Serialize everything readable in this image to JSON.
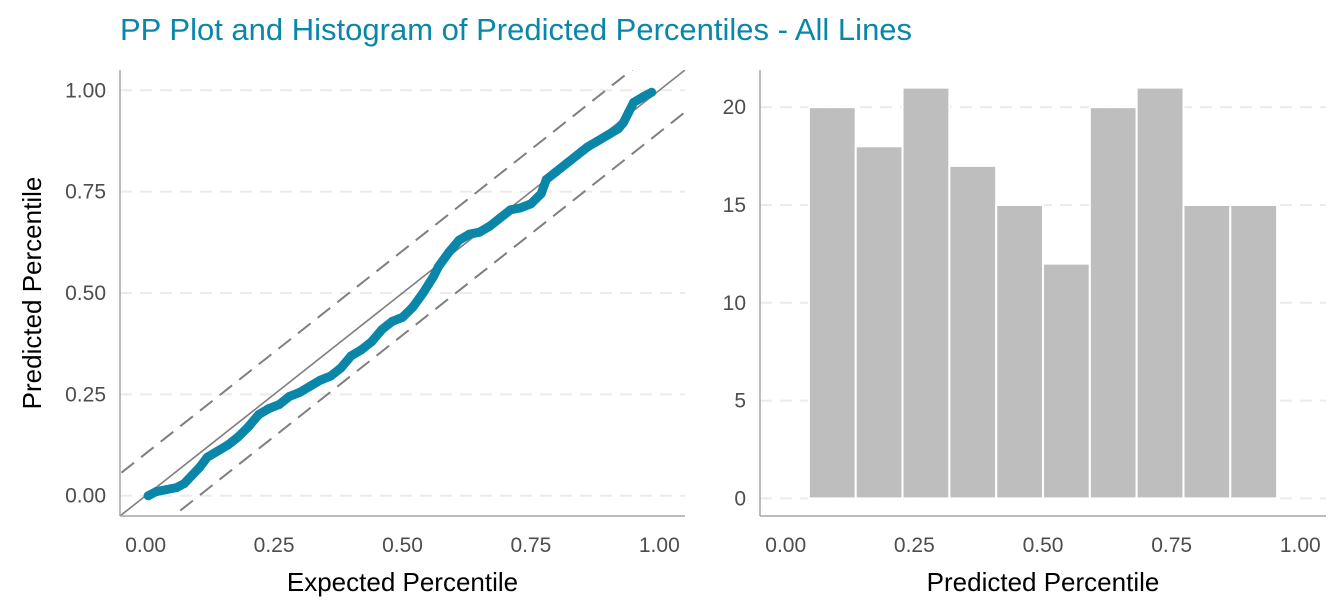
{
  "title": "PP Plot and Histogram of Predicted Percentiles - All Lines",
  "colors": {
    "title": "#0A86A8",
    "points": "#0A86A8",
    "bars": "#BEBEBE",
    "reference_lines": "#7F7F7F",
    "grid": "#EBEBEB",
    "axis": "#A6A6A6"
  },
  "chart_data": [
    {
      "type": "scatter",
      "xlabel": "Expected Percentile",
      "ylabel": "Predicted Percentile",
      "xlim": [
        -0.05,
        1.05
      ],
      "ylim": [
        -0.05,
        1.05
      ],
      "xticks": [
        "0.00",
        "0.25",
        "0.50",
        "0.75",
        "1.00"
      ],
      "yticks": [
        "0.00",
        "0.25",
        "0.50",
        "0.75",
        "1.00"
      ],
      "xtick_values": [
        0,
        0.25,
        0.5,
        0.75,
        1
      ],
      "ytick_values": [
        0,
        0.25,
        0.5,
        0.75,
        1
      ],
      "grid": "horizontal dashed",
      "reference_line": {
        "slope": 1,
        "intercept": 0,
        "style": "solid"
      },
      "confidence_band": {
        "offset": 0.104,
        "style": "dashed"
      },
      "points": [
        [
          0.005,
          0.0
        ],
        [
          0.02,
          0.01
        ],
        [
          0.04,
          0.015
        ],
        [
          0.06,
          0.02
        ],
        [
          0.075,
          0.03
        ],
        [
          0.09,
          0.05
        ],
        [
          0.105,
          0.07
        ],
        [
          0.12,
          0.095
        ],
        [
          0.14,
          0.11
        ],
        [
          0.16,
          0.125
        ],
        [
          0.18,
          0.145
        ],
        [
          0.2,
          0.17
        ],
        [
          0.22,
          0.2
        ],
        [
          0.24,
          0.215
        ],
        [
          0.26,
          0.225
        ],
        [
          0.28,
          0.245
        ],
        [
          0.3,
          0.255
        ],
        [
          0.32,
          0.27
        ],
        [
          0.34,
          0.285
        ],
        [
          0.36,
          0.295
        ],
        [
          0.38,
          0.315
        ],
        [
          0.4,
          0.345
        ],
        [
          0.42,
          0.36
        ],
        [
          0.44,
          0.38
        ],
        [
          0.46,
          0.41
        ],
        [
          0.48,
          0.43
        ],
        [
          0.5,
          0.44
        ],
        [
          0.52,
          0.465
        ],
        [
          0.54,
          0.5
        ],
        [
          0.56,
          0.54
        ],
        [
          0.57,
          0.565
        ],
        [
          0.59,
          0.6
        ],
        [
          0.61,
          0.63
        ],
        [
          0.63,
          0.645
        ],
        [
          0.65,
          0.65
        ],
        [
          0.67,
          0.665
        ],
        [
          0.69,
          0.685
        ],
        [
          0.71,
          0.705
        ],
        [
          0.73,
          0.71
        ],
        [
          0.75,
          0.72
        ],
        [
          0.77,
          0.745
        ],
        [
          0.78,
          0.78
        ],
        [
          0.8,
          0.8
        ],
        [
          0.82,
          0.82
        ],
        [
          0.84,
          0.84
        ],
        [
          0.86,
          0.86
        ],
        [
          0.88,
          0.875
        ],
        [
          0.9,
          0.89
        ],
        [
          0.92,
          0.905
        ],
        [
          0.93,
          0.92
        ],
        [
          0.94,
          0.945
        ],
        [
          0.95,
          0.97
        ],
        [
          0.97,
          0.985
        ],
        [
          0.985,
          0.995
        ]
      ]
    },
    {
      "type": "bar",
      "xlabel": "Predicted Percentile",
      "ylabel": "",
      "xlim": [
        -0.05,
        1.05
      ],
      "ylim": [
        -0.9,
        21.9
      ],
      "xticks": [
        "0.00",
        "0.25",
        "0.50",
        "0.75",
        "1.00"
      ],
      "yticks": [
        "0",
        "5",
        "10",
        "15",
        "20"
      ],
      "xtick_values": [
        0,
        0.25,
        0.5,
        0.75,
        1
      ],
      "ytick_values": [
        0,
        5,
        10,
        15,
        20
      ],
      "grid": "horizontal dashed",
      "bins": [
        [
          0.045,
          0.136
        ],
        [
          0.136,
          0.227
        ],
        [
          0.227,
          0.318
        ],
        [
          0.318,
          0.409
        ],
        [
          0.409,
          0.5
        ],
        [
          0.5,
          0.591
        ],
        [
          0.591,
          0.682
        ],
        [
          0.682,
          0.773
        ],
        [
          0.773,
          0.864
        ],
        [
          0.864,
          0.955
        ]
      ],
      "values": [
        20,
        18,
        21,
        17,
        15,
        12,
        20,
        21,
        15,
        15
      ]
    }
  ]
}
